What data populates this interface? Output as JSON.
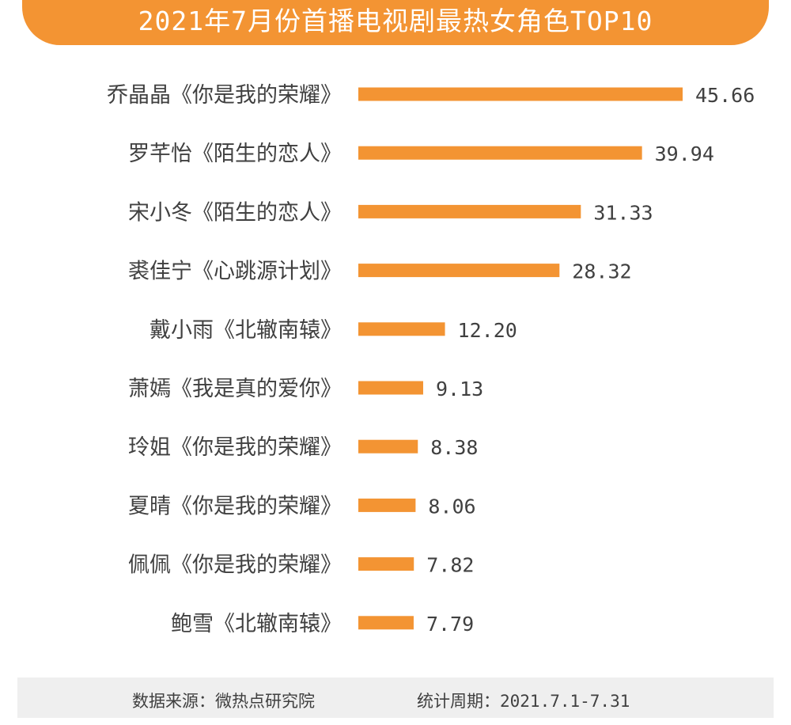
{
  "chart_data": {
    "type": "bar",
    "orientation": "horizontal",
    "title": "2021年7月份首播电视剧最热女角色TOP10",
    "categories": [
      "乔晶晶《你是我的荣耀》",
      "罗芊怡《陌生的恋人》",
      "宋小冬《陌生的恋人》",
      "裘佳宁《心跳源计划》",
      "戴小雨《北辙南辕》",
      "萧嫣《我是真的爱你》",
      "玲姐《你是我的荣耀》",
      "夏晴《你是我的荣耀》",
      "佩佩《你是我的荣耀》",
      "鲍雪《北辙南辕》"
    ],
    "values": [
      45.66,
      39.94,
      31.33,
      28.32,
      12.2,
      9.13,
      8.38,
      8.06,
      7.82,
      7.79
    ],
    "value_labels": [
      "45.66",
      "39.94",
      "31.33",
      "28.32",
      "12.20",
      "9.13",
      "8.38",
      "8.06",
      "7.82",
      "7.79"
    ],
    "xlim": [
      0,
      45.66
    ],
    "grid": false,
    "legend": "none",
    "colors": {
      "bar": "#f39433",
      "banner": "#f39433",
      "text": "#404040",
      "footer_bg": "#efefef"
    }
  },
  "footer": {
    "source": "数据来源：微热点研究院",
    "period": "统计周期：2021.7.1-7.31"
  }
}
